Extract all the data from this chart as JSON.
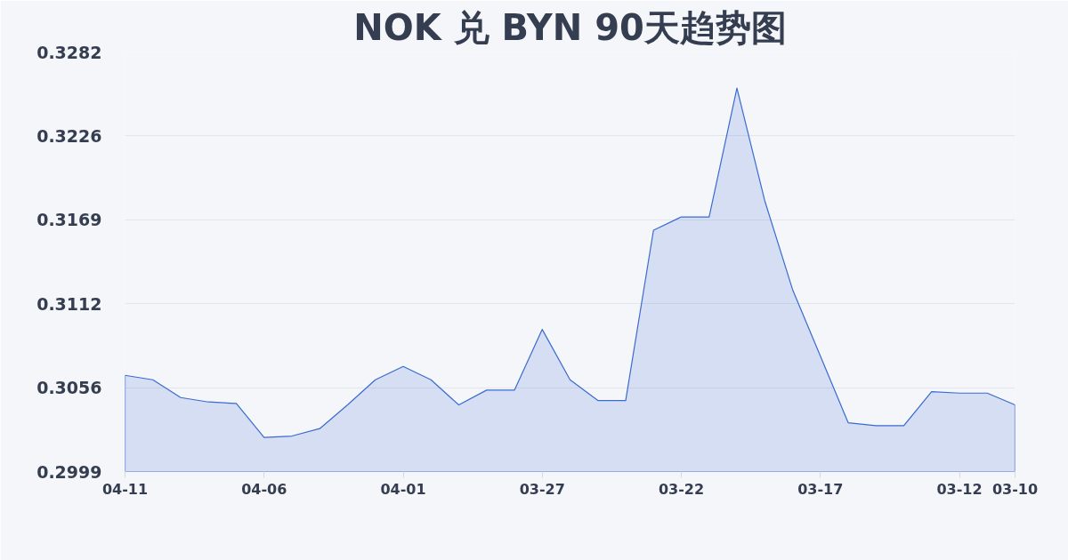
{
  "chart_data": {
    "type": "area",
    "title": "NOK 兑 BYN 90天趋势图",
    "categories": [
      "04-11",
      null,
      null,
      null,
      null,
      "04-06",
      null,
      null,
      null,
      null,
      "04-01",
      null,
      null,
      null,
      null,
      "03-27",
      null,
      null,
      null,
      null,
      "03-22",
      null,
      null,
      null,
      null,
      "03-17",
      null,
      null,
      null,
      null,
      "03-12",
      null,
      "03-10"
    ],
    "series": [
      {
        "color": "#3a6bd1",
        "values": [
          0.3064,
          0.3061,
          0.3049,
          0.3046,
          0.3045,
          0.3022,
          0.3023,
          0.3028,
          0.3044,
          0.3061,
          0.307,
          0.3061,
          0.3044,
          0.3054,
          0.3054,
          0.3095,
          0.3061,
          0.3047,
          0.3047,
          0.3162,
          0.3171,
          0.3171,
          0.3258,
          0.3182,
          0.3122,
          0.3077,
          0.3032,
          0.303,
          0.303,
          0.3053,
          0.3052,
          0.3052,
          0.3044
        ]
      }
    ],
    "ylim": [
      0.2999,
      0.32824
    ],
    "yticks": [
      {
        "value": 0.2999,
        "label": "0.2999"
      },
      {
        "value": 0.30557,
        "label": "0.3056"
      },
      {
        "value": 0.31124,
        "label": "0.3112"
      },
      {
        "value": 0.3169,
        "label": "0.3169"
      },
      {
        "value": 0.32257,
        "label": "0.3226"
      },
      {
        "value": 0.32824,
        "label": "0.3282"
      }
    ],
    "grid": "y",
    "line_style": "solid"
  }
}
